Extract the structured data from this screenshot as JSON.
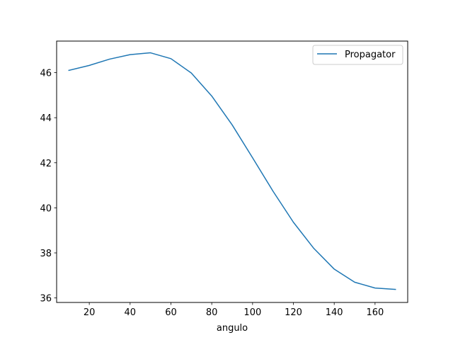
{
  "chart_data": {
    "type": "line",
    "title": "",
    "xlabel": "angulo",
    "ylabel": "",
    "xlim": [
      4.0,
      176.0
    ],
    "ylim": [
      35.8,
      47.4
    ],
    "xticks": [
      20,
      40,
      60,
      80,
      100,
      120,
      140,
      160
    ],
    "yticks": [
      36,
      38,
      40,
      42,
      44,
      46
    ],
    "grid": false,
    "legend_position": "top-right",
    "series": [
      {
        "name": "Propagator",
        "color": "#1f77b4",
        "x": [
          10,
          20,
          30,
          40,
          50,
          60,
          70,
          80,
          90,
          100,
          110,
          120,
          130,
          140,
          150,
          160,
          170
        ],
        "y": [
          46.1,
          46.32,
          46.6,
          46.8,
          46.88,
          46.62,
          45.98,
          44.96,
          43.68,
          42.22,
          40.74,
          39.36,
          38.2,
          37.28,
          36.7,
          36.44,
          36.38
        ]
      }
    ]
  }
}
